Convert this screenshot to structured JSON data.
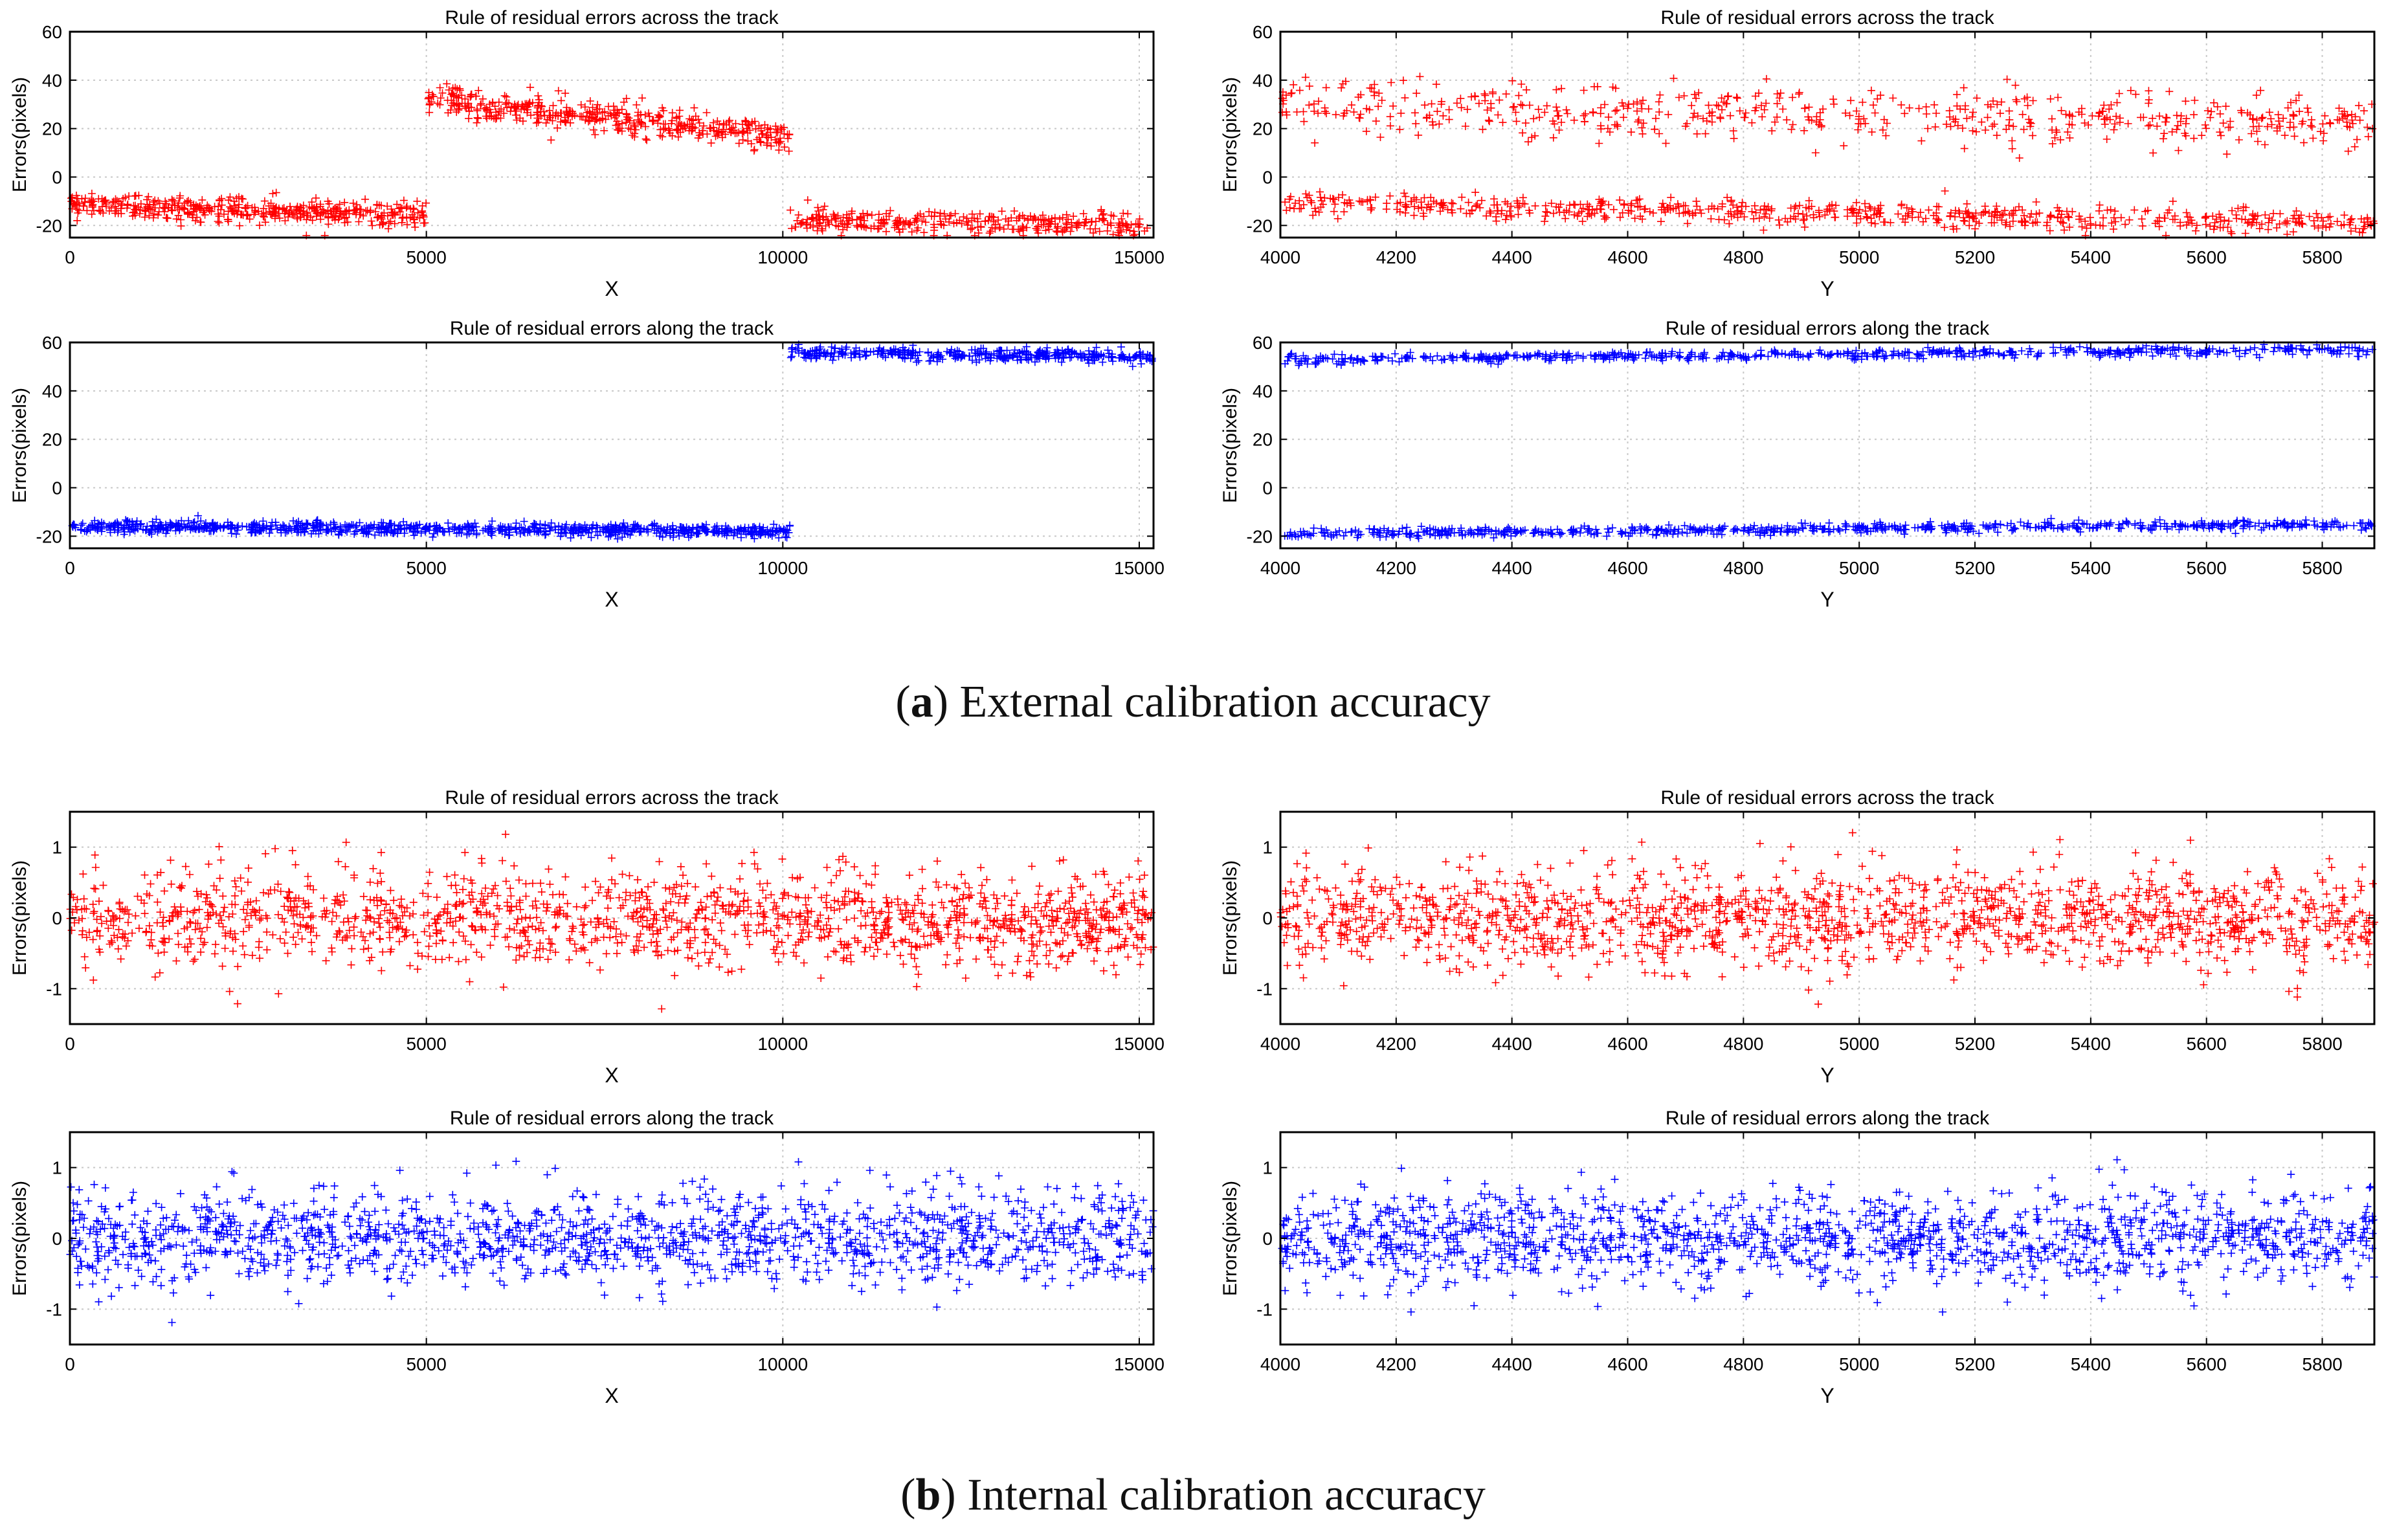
{
  "figure": {
    "caption_a_letter": "a",
    "caption_a_text": "External calibration accuracy",
    "caption_b_letter": "b",
    "caption_b_text": "Internal calibration accuracy"
  },
  "chart_data": [
    {
      "id": "a-x-across",
      "type": "scatter",
      "marker": "+",
      "color": "#ff0000",
      "title": "Rule of residual errors across the track",
      "xlabel": "X",
      "ylabel": "Errors(pixels)",
      "xlim": [
        0,
        15200
      ],
      "ylim": [
        -25,
        60
      ],
      "xticks": [
        0,
        5000,
        10000,
        15000
      ],
      "yticks": [
        -20,
        0,
        20,
        40,
        60
      ],
      "grid": true,
      "segments": [
        {
          "x": [
            0,
            5000
          ],
          "y": [
            -11,
            -16
          ],
          "noise": 2.5,
          "n": 450
        },
        {
          "x": [
            5000,
            10100
          ],
          "y": [
            32,
            17
          ],
          "noise": 3,
          "n": 450
        },
        {
          "x": [
            10100,
            15200
          ],
          "y": [
            -18,
            -20
          ],
          "noise": 2.5,
          "n": 330
        }
      ]
    },
    {
      "id": "a-y-across",
      "type": "scatter",
      "marker": "+",
      "color": "#ff0000",
      "title": "Rule of residual errors across the track",
      "xlabel": "Y",
      "ylabel": "Errors(pixels)",
      "xlim": [
        4000,
        5890
      ],
      "ylim": [
        -25,
        60
      ],
      "xticks": [
        4000,
        4200,
        4400,
        4600,
        4800,
        5000,
        5200,
        5400,
        5600,
        5800
      ],
      "yticks": [
        -20,
        0,
        20,
        40,
        60
      ],
      "grid": true,
      "segments": [
        {
          "x": [
            4000,
            5890
          ],
          "y": [
            30,
            22
          ],
          "noise": 5.5,
          "n": 550
        },
        {
          "x": [
            4000,
            5890
          ],
          "y": [
            -11,
            -19
          ],
          "noise": 2.5,
          "n": 650
        }
      ]
    },
    {
      "id": "a-x-along",
      "type": "scatter",
      "marker": "+",
      "color": "#0000ff",
      "title": "Rule of residual errors along the track",
      "xlabel": "X",
      "ylabel": "Errors(pixels)",
      "xlim": [
        0,
        15200
      ],
      "ylim": [
        -25,
        60
      ],
      "xticks": [
        0,
        5000,
        10000,
        15000
      ],
      "yticks": [
        -20,
        0,
        20,
        40,
        60
      ],
      "grid": true,
      "segments": [
        {
          "x": [
            0,
            10100
          ],
          "y": [
            -16,
            -18
          ],
          "noise": 1.3,
          "n": 850
        },
        {
          "x": [
            10100,
            15200
          ],
          "y": [
            56,
            54
          ],
          "noise": 1.3,
          "n": 380
        }
      ]
    },
    {
      "id": "a-y-along",
      "type": "scatter",
      "marker": "+",
      "color": "#0000ff",
      "title": "Rule of residual errors along the track",
      "xlabel": "Y",
      "ylabel": "Errors(pixels)",
      "xlim": [
        4000,
        5890
      ],
      "ylim": [
        -25,
        60
      ],
      "xticks": [
        4000,
        4200,
        4400,
        4600,
        4800,
        5000,
        5200,
        5400,
        5600,
        5800
      ],
      "yticks": [
        -20,
        0,
        20,
        40,
        60
      ],
      "grid": true,
      "segments": [
        {
          "x": [
            4000,
            5890
          ],
          "y": [
            53,
            57
          ],
          "noise": 1.0,
          "n": 600
        },
        {
          "x": [
            4000,
            5890
          ],
          "y": [
            -19,
            -15
          ],
          "noise": 1.0,
          "n": 650
        }
      ]
    },
    {
      "id": "b-x-across",
      "type": "scatter",
      "marker": "+",
      "color": "#ff0000",
      "title": "Rule of residual errors across the track",
      "xlabel": "X",
      "ylabel": "Errors(pixels)",
      "xlim": [
        0,
        15200
      ],
      "ylim": [
        -1.5,
        1.5
      ],
      "xticks": [
        0,
        5000,
        10000,
        15000
      ],
      "yticks": [
        -1,
        0,
        1
      ],
      "grid": true,
      "segments": [
        {
          "x": [
            0,
            15200
          ],
          "y": [
            0,
            0
          ],
          "noise": 0.35,
          "n": 1500
        }
      ]
    },
    {
      "id": "b-y-across",
      "type": "scatter",
      "marker": "+",
      "color": "#ff0000",
      "title": "Rule of residual errors across the track",
      "xlabel": "Y",
      "ylabel": "Errors(pixels)",
      "xlim": [
        4000,
        5890
      ],
      "ylim": [
        -1.5,
        1.5
      ],
      "xticks": [
        4000,
        4200,
        4400,
        4600,
        4800,
        5000,
        5200,
        5400,
        5600,
        5800
      ],
      "yticks": [
        -1,
        0,
        1
      ],
      "grid": true,
      "segments": [
        {
          "x": [
            4000,
            5890
          ],
          "y": [
            0,
            0
          ],
          "noise": 0.35,
          "n": 1500
        }
      ]
    },
    {
      "id": "b-x-along",
      "type": "scatter",
      "marker": "+",
      "color": "#0000ff",
      "title": "Rule of residual errors along the track",
      "xlabel": "X",
      "ylabel": "Errors(pixels)",
      "xlim": [
        0,
        15200
      ],
      "ylim": [
        -1.5,
        1.5
      ],
      "xticks": [
        0,
        5000,
        10000,
        15000
      ],
      "yticks": [
        -1,
        0,
        1
      ],
      "grid": true,
      "segments": [
        {
          "x": [
            0,
            15200
          ],
          "y": [
            0,
            0
          ],
          "noise": 0.33,
          "n": 1500
        }
      ]
    },
    {
      "id": "b-y-along",
      "type": "scatter",
      "marker": "+",
      "color": "#0000ff",
      "title": "Rule of residual errors along the track",
      "xlabel": "Y",
      "ylabel": "Errors(pixels)",
      "xlim": [
        4000,
        5890
      ],
      "ylim": [
        -1.5,
        1.5
      ],
      "xticks": [
        4000,
        4200,
        4400,
        4600,
        4800,
        5000,
        5200,
        5400,
        5600,
        5800
      ],
      "yticks": [
        -1,
        0,
        1
      ],
      "grid": true,
      "segments": [
        {
          "x": [
            4000,
            5890
          ],
          "y": [
            0,
            0
          ],
          "noise": 0.33,
          "n": 1500
        }
      ]
    }
  ]
}
